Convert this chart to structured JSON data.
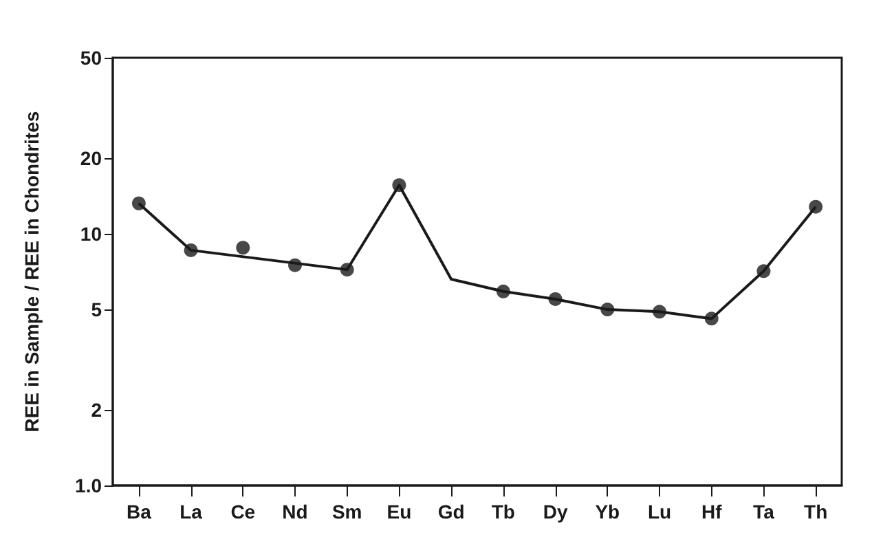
{
  "chart_data": {
    "type": "line",
    "ylabel": "REE in Sample / REE in Chondrites",
    "categories": [
      "Ba",
      "La",
      "Ce",
      "Nd",
      "Sm",
      "Eu",
      "Gd",
      "Tb",
      "Dy",
      "Yb",
      "Lu",
      "Hf",
      "Ta",
      "Th"
    ],
    "series": [
      {
        "color": "#1a1a1a",
        "marker": "none",
        "line_style": "solid",
        "values": [
          13.2,
          8.6,
          null,
          null,
          7.2,
          15.6,
          6.6,
          5.9,
          5.5,
          5.0,
          4.9,
          4.6,
          7.1,
          12.8
        ]
      },
      {
        "type": "scatter",
        "color": "#1a1a1a",
        "marker": "circle",
        "values": [
          13.2,
          8.6,
          8.8,
          7.5,
          7.2,
          15.6,
          null,
          5.9,
          5.5,
          5.0,
          4.9,
          4.6,
          7.1,
          12.8
        ]
      }
    ],
    "log": "y",
    "ylim": [
      1,
      50
    ],
    "yticks": [
      {
        "value": 1,
        "label": "1.0"
      },
      2,
      5,
      10,
      20,
      50
    ],
    "grid": false
  }
}
